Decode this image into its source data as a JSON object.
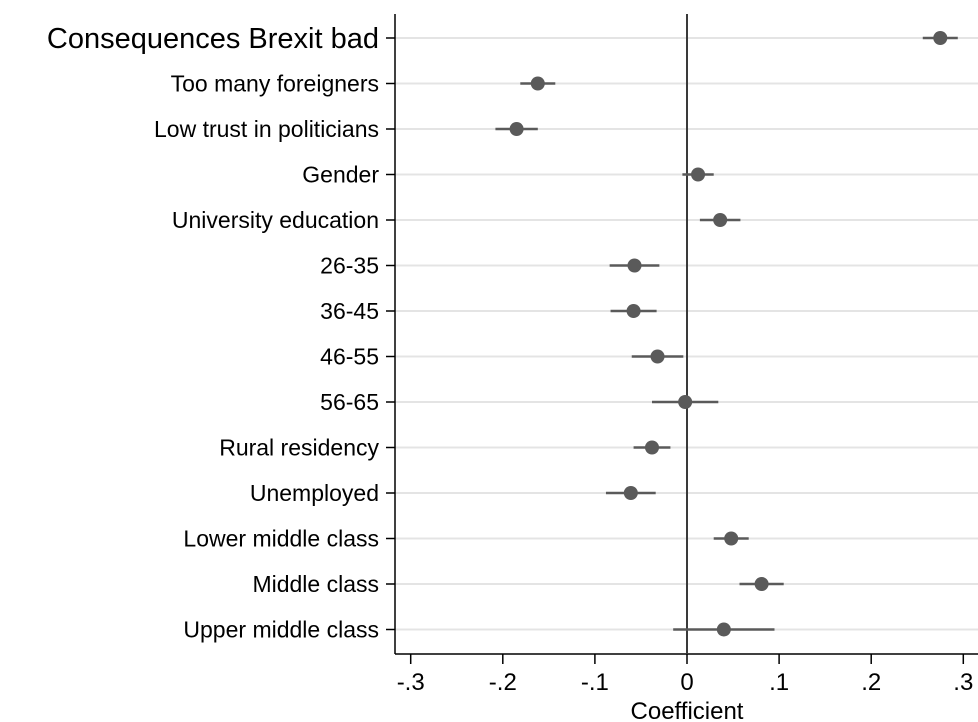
{
  "chart_data": {
    "type": "scatter",
    "subtype": "coefficient-plot",
    "title": "",
    "xlabel": "Coefficient",
    "ylabel": "",
    "xlim": [
      -0.32,
      0.32
    ],
    "x_ticks": [
      -0.3,
      -0.2,
      -0.1,
      0,
      0.1,
      0.2,
      0.3
    ],
    "x_tick_labels": [
      "-.3",
      "-.2",
      "-.1",
      "0",
      ".1",
      ".2",
      ".3"
    ],
    "reference_line": 0,
    "grid": true,
    "marker_color": "#5a5a5a",
    "ci_color": "#5a5a5a",
    "grid_color": "#e4e4e4",
    "series": [
      {
        "points": [
          {
            "label": "Consequences Brexit bad",
            "estimate": 0.275,
            "ci_low": 0.256,
            "ci_high": 0.294
          },
          {
            "label": "Too many foreigners",
            "estimate": -0.162,
            "ci_low": -0.181,
            "ci_high": -0.143
          },
          {
            "label": "Low trust in politicians",
            "estimate": -0.185,
            "ci_low": -0.208,
            "ci_high": -0.162
          },
          {
            "label": "Gender",
            "estimate": 0.012,
            "ci_low": -0.005,
            "ci_high": 0.029
          },
          {
            "label": "University education",
            "estimate": 0.036,
            "ci_low": 0.014,
            "ci_high": 0.058
          },
          {
            "label": "26-35",
            "estimate": -0.057,
            "ci_low": -0.084,
            "ci_high": -0.03
          },
          {
            "label": "36-45",
            "estimate": -0.058,
            "ci_low": -0.083,
            "ci_high": -0.033
          },
          {
            "label": "46-55",
            "estimate": -0.032,
            "ci_low": -0.06,
            "ci_high": -0.004
          },
          {
            "label": "56-65",
            "estimate": -0.002,
            "ci_low": -0.038,
            "ci_high": 0.034
          },
          {
            "label": "Rural residency",
            "estimate": -0.038,
            "ci_low": -0.058,
            "ci_high": -0.018
          },
          {
            "label": "Unemployed",
            "estimate": -0.061,
            "ci_low": -0.088,
            "ci_high": -0.034
          },
          {
            "label": "Lower middle class",
            "estimate": 0.048,
            "ci_low": 0.029,
            "ci_high": 0.067
          },
          {
            "label": "Middle class",
            "estimate": 0.081,
            "ci_low": 0.057,
            "ci_high": 0.105
          },
          {
            "label": "Upper middle class",
            "estimate": 0.04,
            "ci_low": -0.015,
            "ci_high": 0.095
          }
        ]
      }
    ]
  }
}
